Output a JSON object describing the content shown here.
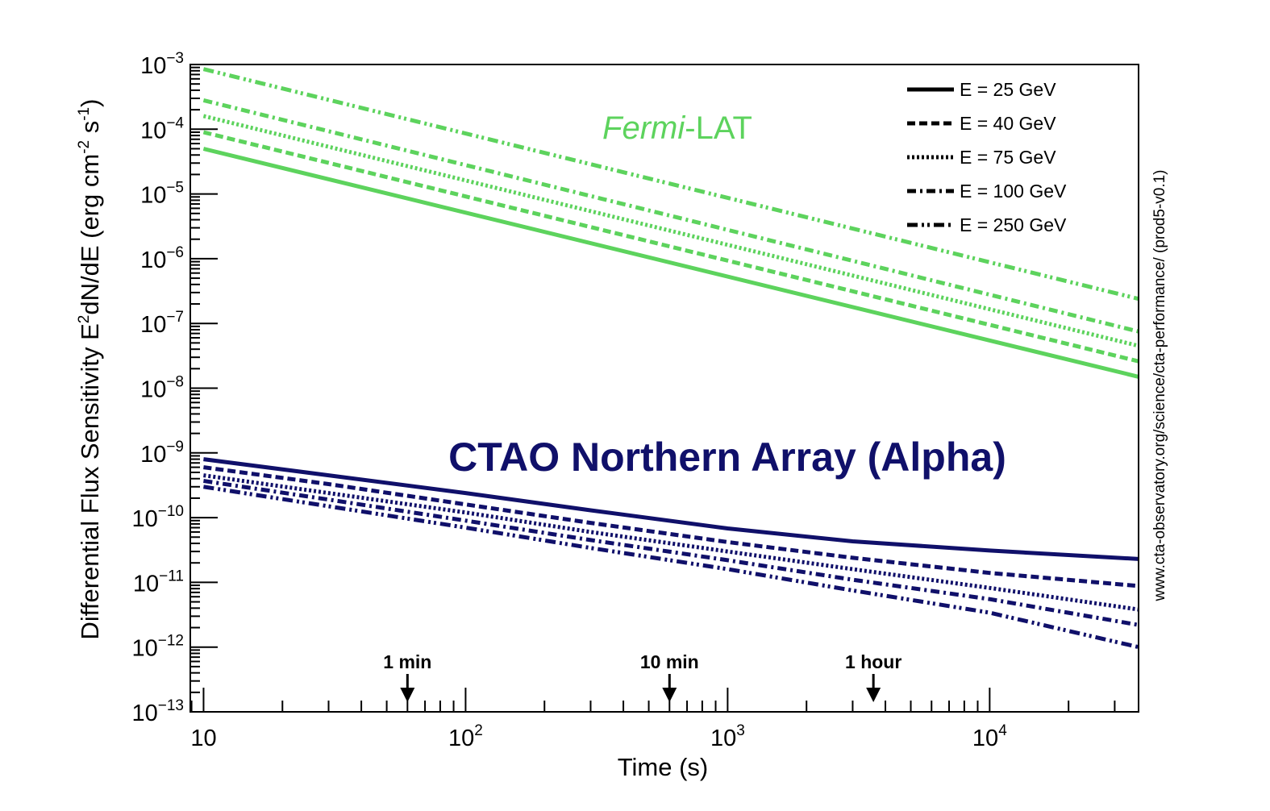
{
  "chart_data": {
    "type": "line",
    "log_x": true,
    "log_y": true,
    "xlabel": "Time (s)",
    "ylabel": {
      "prefix": "Differential Flux Sensitivity E",
      "sup1": "2",
      "mid": "dN/dE (erg cm",
      "sup2": "-2",
      "mid2": " s",
      "sup3": "-1",
      "suffix": ")"
    },
    "xlim": [
      8.9,
      37000
    ],
    "ylim": [
      1e-13,
      0.001
    ],
    "x_ticks": [
      {
        "value": 10,
        "base": "10",
        "exp": ""
      },
      {
        "value": 100,
        "base": "10",
        "exp": "2"
      },
      {
        "value": 1000,
        "base": "10",
        "exp": "3"
      },
      {
        "value": 10000,
        "base": "10",
        "exp": "4"
      }
    ],
    "y_ticks": [
      {
        "value": 0.001,
        "base": "10",
        "exp": "−3"
      },
      {
        "value": 0.0001,
        "base": "10",
        "exp": "−4"
      },
      {
        "value": 1e-05,
        "base": "10",
        "exp": "−5"
      },
      {
        "value": 1e-06,
        "base": "10",
        "exp": "−6"
      },
      {
        "value": 1e-07,
        "base": "10",
        "exp": "−7"
      },
      {
        "value": 1e-08,
        "base": "10",
        "exp": "−8"
      },
      {
        "value": 1e-09,
        "base": "10",
        "exp": "−9"
      },
      {
        "value": 1e-10,
        "base": "10",
        "exp": "−10"
      },
      {
        "value": 1e-11,
        "base": "10",
        "exp": "−11"
      },
      {
        "value": 1e-12,
        "base": "10",
        "exp": "−12"
      },
      {
        "value": 1e-13,
        "base": "10",
        "exp": "−13"
      }
    ],
    "legend": [
      {
        "label": "E = 25 GeV",
        "style": "solid"
      },
      {
        "label": "E = 40 GeV",
        "style": "dashed"
      },
      {
        "label": "E = 75 GeV",
        "style": "dotted"
      },
      {
        "label": "E = 100 GeV",
        "style": "dashdot"
      },
      {
        "label": "E = 250 GeV",
        "style": "dashdotdot"
      }
    ],
    "annotations": {
      "fermi": {
        "italic": "Fermi",
        "rest": "-LAT"
      },
      "ctao": "CTAO Northern Array (Alpha)",
      "credit": "www.cta-observatory.org/science/cta-performance/ (prod5-v0.1)"
    },
    "markers": [
      {
        "label": "1 min",
        "x": 60
      },
      {
        "label": "10 min",
        "x": 600
      },
      {
        "label": "1 hour",
        "x": 3600
      }
    ],
    "colors": {
      "fermi": "#5dd35d",
      "ctao": "#10106a",
      "axis": "#000000"
    },
    "series": [
      {
        "name": "Fermi-LAT E = 25 GeV",
        "group": "fermi",
        "style": "solid",
        "x": [
          10,
          37000
        ],
        "y": [
          5e-05,
          1.5e-08
        ]
      },
      {
        "name": "Fermi-LAT E = 40 GeV",
        "group": "fermi",
        "style": "dashed",
        "x": [
          10,
          37000
        ],
        "y": [
          9e-05,
          2.6e-08
        ]
      },
      {
        "name": "Fermi-LAT E = 75 GeV",
        "group": "fermi",
        "style": "dotted",
        "x": [
          10,
          37000
        ],
        "y": [
          0.00016,
          4.5e-08
        ]
      },
      {
        "name": "Fermi-LAT E = 100 GeV",
        "group": "fermi",
        "style": "dashdot",
        "x": [
          10,
          37000
        ],
        "y": [
          0.00028,
          7.5e-08
        ]
      },
      {
        "name": "Fermi-LAT E = 250 GeV",
        "group": "fermi",
        "style": "dashdotdot",
        "x": [
          10,
          37000
        ],
        "y": [
          0.00085,
          2.4e-07
        ]
      },
      {
        "name": "CTAO E = 25 GeV",
        "group": "ctao",
        "style": "solid",
        "x": [
          10,
          30,
          100,
          300,
          1000,
          3000,
          10000,
          37000
        ],
        "y": [
          8e-10,
          4.5e-10,
          2.4e-10,
          1.3e-10,
          6.8e-11,
          4.3e-11,
          3.1e-11,
          2.3e-11
        ]
      },
      {
        "name": "CTAO E = 40 GeV",
        "group": "ctao",
        "style": "dashed",
        "x": [
          10,
          30,
          100,
          300,
          1000,
          3000,
          10000,
          37000
        ],
        "y": [
          6e-10,
          3.3e-10,
          1.6e-10,
          8.3e-11,
          4.2e-11,
          2.4e-11,
          1.4e-11,
          8.8e-12
        ]
      },
      {
        "name": "CTAO E = 75 GeV",
        "group": "ctao",
        "style": "dotted",
        "x": [
          10,
          30,
          100,
          300,
          1000,
          3000,
          10000,
          37000
        ],
        "y": [
          4.5e-10,
          2.4e-10,
          1.2e-10,
          6e-11,
          3e-11,
          1.6e-11,
          8.2e-12,
          3.8e-12
        ]
      },
      {
        "name": "CTAO E = 100 GeV",
        "group": "ctao",
        "style": "dashdot",
        "x": [
          10,
          30,
          100,
          300,
          1000,
          3000,
          10000,
          37000
        ],
        "y": [
          3.7e-10,
          1.9e-10,
          9e-11,
          4.5e-11,
          2.2e-11,
          1.1e-11,
          5.5e-12,
          2.2e-12
        ]
      },
      {
        "name": "CTAO E = 250 GeV",
        "group": "ctao",
        "style": "dashdotdot",
        "x": [
          10,
          30,
          100,
          300,
          1000,
          3000,
          10000,
          37000
        ],
        "y": [
          3e-10,
          1.5e-10,
          7e-11,
          3.4e-11,
          1.6e-11,
          7.5e-12,
          3.4e-12,
          1e-12
        ]
      }
    ]
  }
}
